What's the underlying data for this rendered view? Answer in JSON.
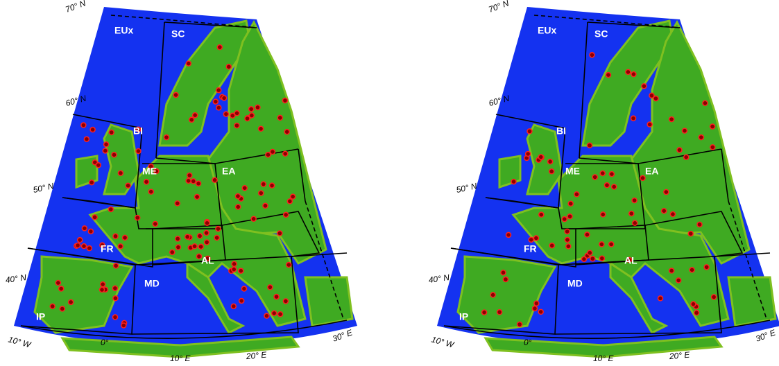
{
  "panels": [
    {
      "regions": [
        "EUx",
        "SC",
        "BI",
        "ME",
        "EA",
        "FR",
        "AL",
        "MD",
        "IP"
      ],
      "lat_labels": [
        "70° N",
        "60° N",
        "50° N",
        "40° N"
      ],
      "lon_labels": [
        "10° W",
        "0°",
        "10° E",
        "20° E",
        "30° E"
      ]
    },
    {
      "regions": [
        "EUx",
        "SC",
        "BI",
        "ME",
        "EA",
        "FR",
        "AL",
        "MD",
        "IP"
      ],
      "lat_labels": [
        "70° N",
        "60° N",
        "50° N",
        "40° N"
      ],
      "lon_labels": [
        "10° W",
        "0°",
        "10° E",
        "20° E",
        "30° E"
      ]
    }
  ]
}
